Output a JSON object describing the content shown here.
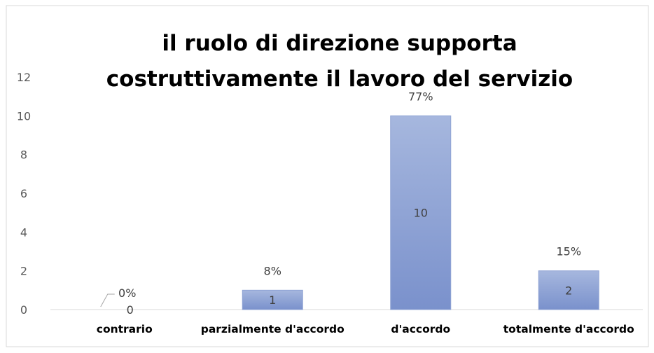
{
  "colors": {
    "bar_top": "#a6b7de",
    "bar_bottom": "#7a91cc",
    "bar_stroke": "#8fa3d4"
  },
  "chart_data": {
    "type": "bar",
    "title_lines": [
      "il ruolo di direzione supporta",
      "costruttivamente il lavoro del servizio"
    ],
    "categories": [
      "contrario",
      "parzialmente d'accordo",
      "d'accordo",
      "totalmente d'accordo"
    ],
    "values": [
      0,
      1,
      10,
      2
    ],
    "value_labels": [
      "0",
      "1",
      "10",
      "2"
    ],
    "percent_labels": [
      "0%",
      "8%",
      "77%",
      "15%"
    ],
    "yticks": [
      "0",
      "2",
      "4",
      "6",
      "8",
      "10",
      "12"
    ],
    "ylim": [
      0,
      12
    ],
    "grid": false,
    "legend": "none"
  }
}
